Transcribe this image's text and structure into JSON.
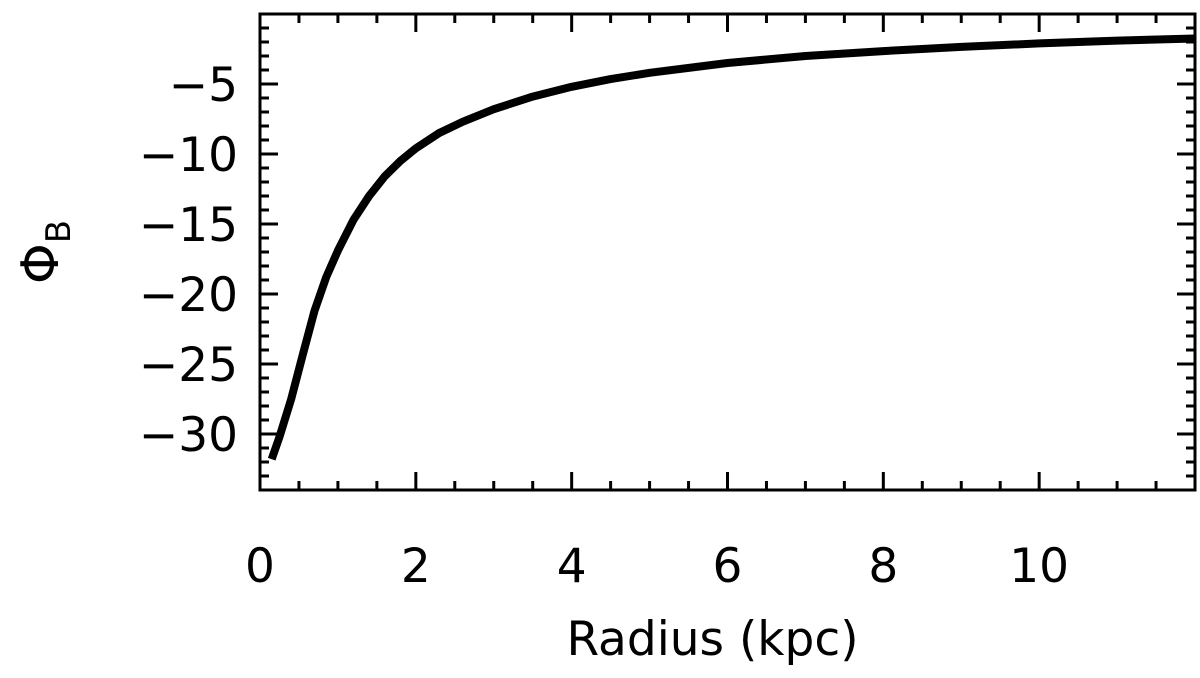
{
  "chart_data": {
    "type": "line",
    "title": "",
    "xlabel": "Radius (kpc)",
    "ylabel": {
      "main": "Φ",
      "sub": "B"
    },
    "xlim": [
      0,
      12
    ],
    "ylim": [
      -34,
      0
    ],
    "x_ticks": [
      {
        "value": 0,
        "label": "0"
      },
      {
        "value": 2,
        "label": "2"
      },
      {
        "value": 4,
        "label": "4"
      },
      {
        "value": 6,
        "label": "6"
      },
      {
        "value": 8,
        "label": "8"
      },
      {
        "value": 10,
        "label": "10"
      }
    ],
    "y_ticks": [
      {
        "value": -5,
        "label": "−5"
      },
      {
        "value": -10,
        "label": "−10"
      },
      {
        "value": -15,
        "label": "−15"
      },
      {
        "value": -20,
        "label": "−20"
      },
      {
        "value": -25,
        "label": "−25"
      },
      {
        "value": -30,
        "label": "−30"
      }
    ],
    "grid": false,
    "line_color": "#000000",
    "series": [
      {
        "x": [
          0.15,
          0.25,
          0.4,
          0.55,
          0.7,
          0.85,
          1.0,
          1.2,
          1.4,
          1.6,
          1.8,
          2.0,
          2.3,
          2.6,
          3.0,
          3.5,
          4.0,
          4.5,
          5.0,
          6.0,
          7.0,
          8.0,
          9.0,
          10.0,
          11.0,
          12.0
        ],
        "y": [
          -31.8,
          -30.2,
          -27.5,
          -24.3,
          -21.2,
          -18.8,
          -16.9,
          -14.7,
          -13.0,
          -11.6,
          -10.5,
          -9.6,
          -8.5,
          -7.7,
          -6.8,
          -5.9,
          -5.2,
          -4.65,
          -4.2,
          -3.5,
          -3.0,
          -2.65,
          -2.35,
          -2.1,
          -1.9,
          -1.75
        ]
      }
    ]
  }
}
